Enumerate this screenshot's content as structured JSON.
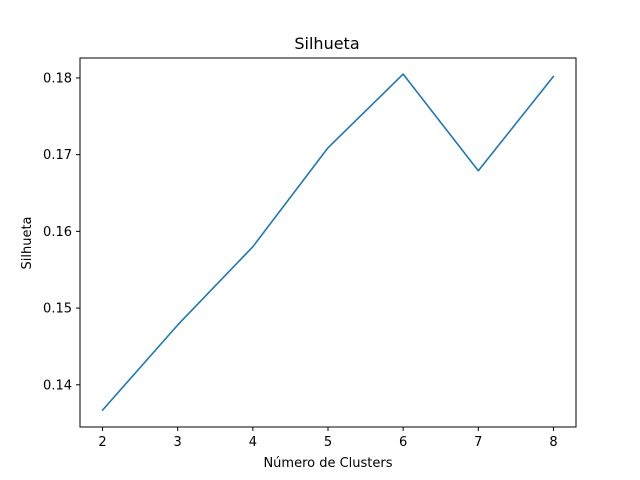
{
  "chart_data": {
    "type": "line",
    "title": "Silhueta",
    "xlabel": "Número de Clusters",
    "ylabel": "Silhueta",
    "x": [
      2,
      3,
      4,
      5,
      6,
      7,
      8
    ],
    "series": [
      {
        "values": [
          0.1367,
          0.1478,
          0.158,
          0.1709,
          0.1805,
          0.1679,
          0.1802
        ]
      }
    ],
    "xlim": [
      1.7,
      8.3
    ],
    "ylim": [
      0.1345,
      0.1826
    ],
    "xticks": [
      "2",
      "3",
      "4",
      "5",
      "6",
      "7",
      "8"
    ],
    "yticks": [
      "0.14",
      "0.15",
      "0.16",
      "0.17",
      "0.18"
    ],
    "ytick_values": [
      0.14,
      0.15,
      0.16,
      0.17,
      0.18
    ],
    "grid": false,
    "colors": {
      "series": "#1f77b4"
    }
  }
}
